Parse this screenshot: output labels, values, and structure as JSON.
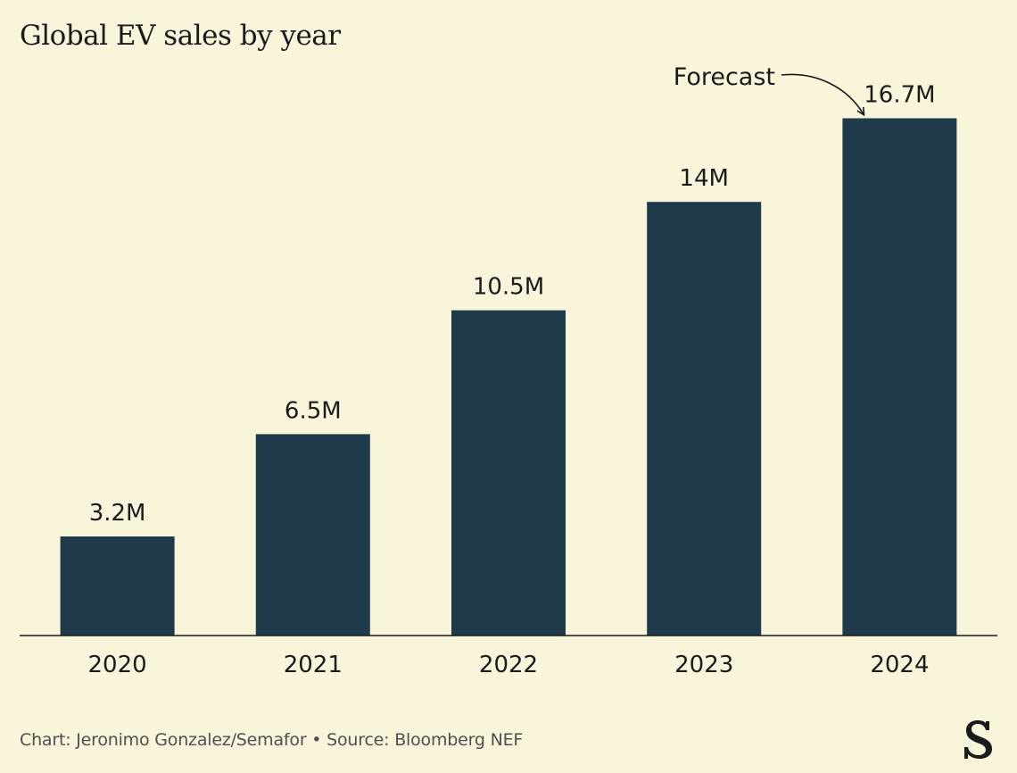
{
  "title": "Global EV sales by year",
  "footer": {
    "credit": "Chart: Jeronimo Gonzalez/Semafor • Source: Bloomberg NEF"
  },
  "annotation": {
    "label": "Forecast"
  },
  "colors": {
    "background": "#f8f5da",
    "bar": "#1e3a4b",
    "text": "#1b1b1b",
    "axis": "#1b1b1b"
  },
  "chart_data": {
    "type": "bar",
    "title": "Global EV sales by year",
    "categories": [
      "2020",
      "2021",
      "2022",
      "2023",
      "2024"
    ],
    "values": [
      3.2,
      6.5,
      10.5,
      14,
      16.7
    ],
    "value_labels": [
      "3.2M",
      "6.5M",
      "10.5M",
      "14M",
      "16.7M"
    ],
    "unit": "M",
    "forecast_category": "2024",
    "xlabel": "",
    "ylabel": "",
    "grid": false,
    "legend": "none"
  }
}
